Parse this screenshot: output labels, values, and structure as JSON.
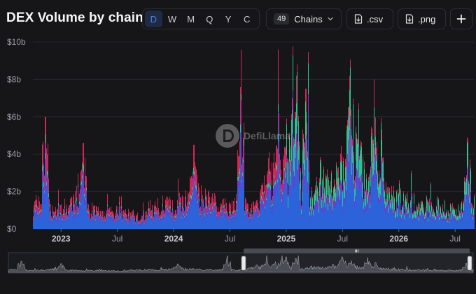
{
  "header": {
    "title": "DEX Volume by chain",
    "granularity": [
      "D",
      "W",
      "M",
      "Q",
      "Y",
      "C"
    ],
    "granularity_selected": "D",
    "chains_count": "49",
    "chains_label": "Chains",
    "csv_label": ".csv",
    "png_label": ".png",
    "icons": {
      "download": "download-icon",
      "add": "plus-icon",
      "dropdown": "chevron-down-icon"
    }
  },
  "watermark": {
    "text": "DefiLlama"
  },
  "colors": {
    "blue": "#2f6cf0",
    "pink": "#e6295e",
    "green": "#2fd79a",
    "purple": "#7b3fe4"
  },
  "chart_data": {
    "type": "bar",
    "stacked": true,
    "daily": true,
    "title": "DEX Volume by chain",
    "ylim": [
      0,
      10
    ],
    "y_unit": "b",
    "y_ticks": [
      "$0",
      "$2b",
      "$4b",
      "$6b",
      "$8b",
      "$10b"
    ],
    "x_range": [
      "2022-10",
      "2026-09"
    ],
    "x_ticks": [
      {
        "label": "2023",
        "date": "2023-01",
        "bold": true
      },
      {
        "label": "Jul",
        "date": "2023-07",
        "bold": false
      },
      {
        "label": "2024",
        "date": "2024-01",
        "bold": true
      },
      {
        "label": "Jul",
        "date": "2024-07",
        "bold": false
      },
      {
        "label": "2025",
        "date": "2025-01",
        "bold": true
      },
      {
        "label": "Jul",
        "date": "2025-07",
        "bold": false
      },
      {
        "label": "2026",
        "date": "2026-01",
        "bold": true
      },
      {
        "label": "Jul",
        "date": "2026-07",
        "bold": false
      }
    ],
    "grid": true,
    "legend": "none",
    "series": [
      {
        "color": "#2f6cf0"
      },
      {
        "color": "#e6295e"
      },
      {
        "color": "#2fd79a"
      },
      {
        "color": "#7b3fe4"
      }
    ],
    "months": [
      "2022-10",
      "2022-11",
      "2022-12",
      "2023-01",
      "2023-02",
      "2023-03",
      "2023-04",
      "2023-05",
      "2023-06",
      "2023-07",
      "2023-08",
      "2023-09",
      "2023-10",
      "2023-11",
      "2023-12",
      "2024-01",
      "2024-02",
      "2024-03",
      "2024-04",
      "2024-05",
      "2024-06",
      "2024-07",
      "2024-08",
      "2024-09",
      "2024-10",
      "2024-11",
      "2024-12",
      "2025-01",
      "2025-02",
      "2025-03",
      "2025-04",
      "2025-05",
      "2025-06",
      "2025-07",
      "2025-08",
      "2025-09",
      "2025-10",
      "2025-11",
      "2025-12",
      "2026-01",
      "2026-02",
      "2026-03",
      "2026-04",
      "2026-05",
      "2026-06",
      "2026-07",
      "2026-08",
      "2026-09"
    ],
    "typical_total_b": [
      1.2,
      1.6,
      1.0,
      1.1,
      1.2,
      1.8,
      1.0,
      0.9,
      0.8,
      0.9,
      0.8,
      0.7,
      0.8,
      1.1,
      1.3,
      1.3,
      1.5,
      2.3,
      1.7,
      1.4,
      1.1,
      1.2,
      1.4,
      1.0,
      1.2,
      2.6,
      3.0,
      3.2,
      2.2,
      1.9,
      1.8,
      2.7,
      2.5,
      3.2,
      3.3,
      2.7,
      3.0,
      2.2,
      1.6,
      1.7,
      1.4,
      1.2,
      1.1,
      1.3,
      1.0,
      1.0,
      1.6,
      1.5
    ],
    "peaks": [
      {
        "date": "2022-11-10",
        "total_b": 6.0
      },
      {
        "date": "2023-03-11",
        "total_b": 4.6
      },
      {
        "date": "2024-03-05",
        "total_b": 4.5
      },
      {
        "date": "2024-08-05",
        "total_b": 7.6
      },
      {
        "date": "2024-12-05",
        "total_b": 6.2
      },
      {
        "date": "2025-01-20",
        "total_b": 7.0
      },
      {
        "date": "2025-02-03",
        "total_b": 8.2
      },
      {
        "date": "2025-03-03",
        "total_b": 7.5
      },
      {
        "date": "2025-07-24",
        "total_b": 8.2
      },
      {
        "date": "2025-08-22",
        "total_b": 6.3
      },
      {
        "date": "2025-10-11",
        "total_b": 8.0
      },
      {
        "date": "2025-11-04",
        "total_b": 5.3
      },
      {
        "date": "2026-08-10",
        "total_b": 4.8
      }
    ]
  }
}
